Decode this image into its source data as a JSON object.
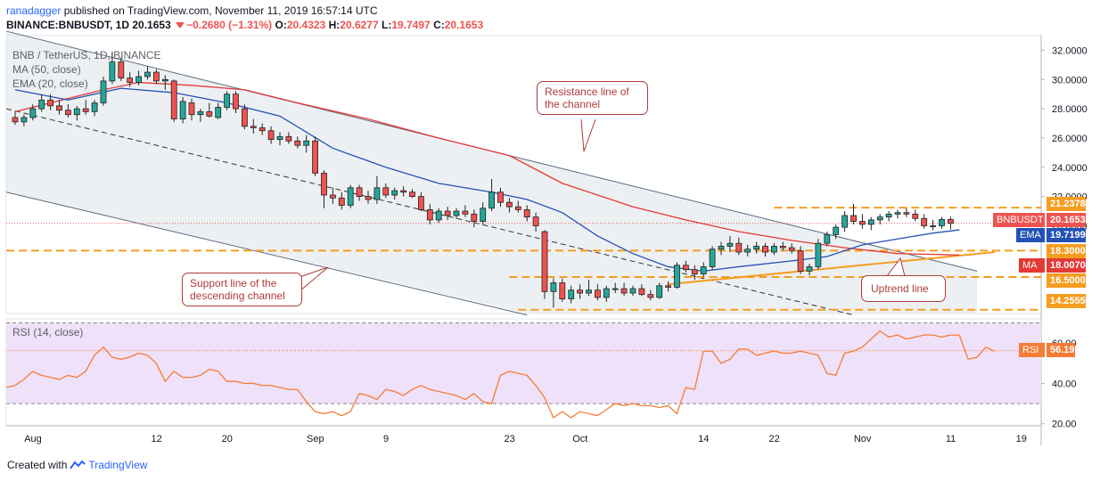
{
  "header": {
    "author": "ranadagger",
    "published": "published on TradingView.com, November 11, 2019 16:57:14 UTC",
    "symbol": "BINANCE:BNBUSDT, 1D",
    "last": "20.1653",
    "change": "−0.2680 (−1.31%)",
    "o_label": "O:",
    "o": "20.4323",
    "h_label": "H:",
    "h": "20.6277",
    "l_label": "L:",
    "l": "19.7497",
    "c_label": "C:",
    "c": "20.1653"
  },
  "legend": {
    "title": "BNB / TetherUS, 1D, BINANCE",
    "ma": "MA (50, close)",
    "ema": "EMA (20, close)",
    "rsi": "RSI (14, close)"
  },
  "annotations": {
    "resistance": "Resistance line of the channel",
    "support": "Support line of the descending channel",
    "uptrend": "Uptrend line"
  },
  "price_tags": {
    "symbol_label": "BNBUSDT",
    "symbol_value": "20.1653",
    "ema_label": "EMA",
    "ema_value": "19.7199",
    "ma_label": "MA",
    "ma_value": "18.0070",
    "rsi_label": "RSI",
    "rsi_value": "56.19",
    "levels": [
      "21.2378",
      "18.3000",
      "16.5000",
      "14.2555"
    ]
  },
  "footer": {
    "created_with": "Created with",
    "brand": "TradingView"
  },
  "colors": {
    "up": "#26a69a",
    "down": "#ef5350",
    "ma": "#e53935",
    "ema": "#2451b7",
    "rsi": "#f57c37",
    "level": "#f59d20",
    "channel": "#5a6a7a",
    "rsi_band": "#efe1f9"
  },
  "chart_data": [
    {
      "type": "candlestick",
      "title": "BNB / TetherUS, 1D, BINANCE",
      "x_tick_labels": [
        "Aug",
        "12",
        "20",
        "Sep",
        "9",
        "23",
        "Oct",
        "14",
        "22",
        "Nov",
        "11",
        "19"
      ],
      "y_tick_labels": [
        "32.0000",
        "30.0000",
        "28.0000",
        "26.0000",
        "24.0000",
        "22.0000",
        "20.0000"
      ],
      "ylim": [
        14.0,
        33.0
      ],
      "levels": [
        21.2378,
        18.3,
        16.5,
        14.2555
      ],
      "candles": [
        {
          "o": 27.4,
          "h": 27.8,
          "l": 26.9,
          "c": 27.1
        },
        {
          "o": 27.1,
          "h": 27.6,
          "l": 26.8,
          "c": 27.4
        },
        {
          "o": 27.4,
          "h": 28.3,
          "l": 27.2,
          "c": 28.0
        },
        {
          "o": 28.0,
          "h": 29.0,
          "l": 27.8,
          "c": 28.6
        },
        {
          "o": 28.6,
          "h": 29.0,
          "l": 27.9,
          "c": 28.2
        },
        {
          "o": 28.2,
          "h": 28.6,
          "l": 27.6,
          "c": 27.9
        },
        {
          "o": 27.9,
          "h": 28.3,
          "l": 27.4,
          "c": 27.6
        },
        {
          "o": 27.6,
          "h": 28.2,
          "l": 27.2,
          "c": 28.0
        },
        {
          "o": 28.0,
          "h": 28.6,
          "l": 27.6,
          "c": 27.8
        },
        {
          "o": 27.8,
          "h": 28.6,
          "l": 27.5,
          "c": 28.4
        },
        {
          "o": 28.4,
          "h": 30.2,
          "l": 28.2,
          "c": 29.9
        },
        {
          "o": 29.9,
          "h": 31.9,
          "l": 29.7,
          "c": 31.2
        },
        {
          "o": 31.2,
          "h": 31.5,
          "l": 29.9,
          "c": 30.1
        },
        {
          "o": 30.1,
          "h": 30.5,
          "l": 29.5,
          "c": 29.8
        },
        {
          "o": 29.8,
          "h": 30.6,
          "l": 29.6,
          "c": 30.2
        },
        {
          "o": 30.2,
          "h": 30.9,
          "l": 30.0,
          "c": 30.5
        },
        {
          "o": 30.5,
          "h": 30.7,
          "l": 29.7,
          "c": 29.9
        },
        {
          "o": 29.9,
          "h": 30.3,
          "l": 29.3,
          "c": 30.0
        },
        {
          "o": 29.9,
          "h": 30.0,
          "l": 27.1,
          "c": 27.3
        },
        {
          "o": 27.3,
          "h": 28.8,
          "l": 27.0,
          "c": 28.5
        },
        {
          "o": 28.4,
          "h": 28.7,
          "l": 27.2,
          "c": 27.6
        },
        {
          "o": 27.6,
          "h": 28.0,
          "l": 27.1,
          "c": 27.8
        },
        {
          "o": 27.8,
          "h": 28.4,
          "l": 27.4,
          "c": 27.5
        },
        {
          "o": 27.4,
          "h": 28.4,
          "l": 27.3,
          "c": 28.1
        },
        {
          "o": 28.1,
          "h": 29.2,
          "l": 27.9,
          "c": 29.0
        },
        {
          "o": 29.0,
          "h": 29.2,
          "l": 27.7,
          "c": 28.0
        },
        {
          "o": 28.0,
          "h": 28.3,
          "l": 26.6,
          "c": 26.8
        },
        {
          "o": 26.8,
          "h": 27.3,
          "l": 26.3,
          "c": 26.7
        },
        {
          "o": 26.7,
          "h": 27.0,
          "l": 26.2,
          "c": 26.5
        },
        {
          "o": 26.5,
          "h": 26.8,
          "l": 25.6,
          "c": 25.9
        },
        {
          "o": 25.9,
          "h": 26.4,
          "l": 25.5,
          "c": 26.1
        },
        {
          "o": 26.1,
          "h": 26.4,
          "l": 25.6,
          "c": 25.8
        },
        {
          "o": 25.8,
          "h": 26.1,
          "l": 25.3,
          "c": 25.5
        },
        {
          "o": 25.5,
          "h": 26.2,
          "l": 25.0,
          "c": 25.8
        },
        {
          "o": 25.8,
          "h": 26.1,
          "l": 23.4,
          "c": 23.6
        },
        {
          "o": 23.6,
          "h": 23.8,
          "l": 21.2,
          "c": 22.1
        },
        {
          "o": 22.1,
          "h": 22.6,
          "l": 21.5,
          "c": 21.9
        },
        {
          "o": 21.9,
          "h": 22.3,
          "l": 21.1,
          "c": 21.4
        },
        {
          "o": 21.4,
          "h": 22.8,
          "l": 21.2,
          "c": 22.6
        },
        {
          "o": 22.6,
          "h": 22.8,
          "l": 21.7,
          "c": 22.0
        },
        {
          "o": 22.0,
          "h": 22.4,
          "l": 21.5,
          "c": 21.8
        },
        {
          "o": 21.8,
          "h": 23.4,
          "l": 21.5,
          "c": 22.6
        },
        {
          "o": 22.6,
          "h": 22.9,
          "l": 21.9,
          "c": 22.1
        },
        {
          "o": 22.1,
          "h": 22.6,
          "l": 21.8,
          "c": 22.4
        },
        {
          "o": 22.4,
          "h": 22.7,
          "l": 22.0,
          "c": 22.3
        },
        {
          "o": 22.3,
          "h": 22.5,
          "l": 21.9,
          "c": 22.0
        },
        {
          "o": 22.0,
          "h": 22.3,
          "l": 21.0,
          "c": 21.1
        },
        {
          "o": 21.1,
          "h": 21.5,
          "l": 20.1,
          "c": 20.4
        },
        {
          "o": 20.4,
          "h": 21.2,
          "l": 20.2,
          "c": 21.0
        },
        {
          "o": 21.0,
          "h": 21.3,
          "l": 20.4,
          "c": 20.7
        },
        {
          "o": 20.7,
          "h": 21.2,
          "l": 20.5,
          "c": 21.0
        },
        {
          "o": 21.0,
          "h": 21.4,
          "l": 20.6,
          "c": 20.8
        },
        {
          "o": 20.8,
          "h": 21.1,
          "l": 19.9,
          "c": 20.3
        },
        {
          "o": 20.3,
          "h": 21.6,
          "l": 20.1,
          "c": 21.2
        },
        {
          "o": 21.2,
          "h": 23.2,
          "l": 21.0,
          "c": 22.3
        },
        {
          "o": 22.3,
          "h": 22.6,
          "l": 21.3,
          "c": 21.6
        },
        {
          "o": 21.6,
          "h": 21.9,
          "l": 20.9,
          "c": 21.3
        },
        {
          "o": 21.3,
          "h": 21.7,
          "l": 20.9,
          "c": 21.1
        },
        {
          "o": 21.1,
          "h": 21.4,
          "l": 20.3,
          "c": 20.6
        },
        {
          "o": 20.6,
          "h": 20.9,
          "l": 19.6,
          "c": 20.0
        },
        {
          "o": 19.6,
          "h": 19.7,
          "l": 15.0,
          "c": 15.5
        },
        {
          "o": 15.5,
          "h": 16.4,
          "l": 14.4,
          "c": 16.1
        },
        {
          "o": 16.1,
          "h": 16.4,
          "l": 14.8,
          "c": 15.0
        },
        {
          "o": 15.0,
          "h": 15.9,
          "l": 14.7,
          "c": 15.6
        },
        {
          "o": 15.6,
          "h": 16.0,
          "l": 15.0,
          "c": 15.4
        },
        {
          "o": 15.4,
          "h": 16.3,
          "l": 15.2,
          "c": 15.6
        },
        {
          "o": 15.6,
          "h": 16.0,
          "l": 14.9,
          "c": 15.1
        },
        {
          "o": 15.1,
          "h": 15.9,
          "l": 14.8,
          "c": 15.7
        },
        {
          "o": 15.7,
          "h": 16.1,
          "l": 15.4,
          "c": 15.7
        },
        {
          "o": 15.7,
          "h": 16.1,
          "l": 15.2,
          "c": 15.4
        },
        {
          "o": 15.4,
          "h": 15.9,
          "l": 15.2,
          "c": 15.7
        },
        {
          "o": 15.7,
          "h": 16.0,
          "l": 15.2,
          "c": 15.3
        },
        {
          "o": 15.3,
          "h": 15.6,
          "l": 14.9,
          "c": 15.1
        },
        {
          "o": 15.1,
          "h": 16.1,
          "l": 15.0,
          "c": 15.9
        },
        {
          "o": 15.9,
          "h": 16.2,
          "l": 15.5,
          "c": 15.8
        },
        {
          "o": 15.8,
          "h": 17.5,
          "l": 15.7,
          "c": 17.3
        },
        {
          "o": 17.3,
          "h": 17.6,
          "l": 16.8,
          "c": 17.0
        },
        {
          "o": 17.0,
          "h": 17.3,
          "l": 16.3,
          "c": 16.7
        },
        {
          "o": 16.7,
          "h": 17.5,
          "l": 16.5,
          "c": 17.2
        },
        {
          "o": 17.2,
          "h": 18.6,
          "l": 17.0,
          "c": 18.4
        },
        {
          "o": 18.4,
          "h": 18.9,
          "l": 18.0,
          "c": 18.6
        },
        {
          "o": 18.6,
          "h": 19.3,
          "l": 18.2,
          "c": 18.8
        },
        {
          "o": 18.8,
          "h": 19.2,
          "l": 18.0,
          "c": 18.2
        },
        {
          "o": 18.2,
          "h": 18.7,
          "l": 17.9,
          "c": 18.4
        },
        {
          "o": 18.4,
          "h": 18.9,
          "l": 18.1,
          "c": 18.6
        },
        {
          "o": 18.6,
          "h": 18.8,
          "l": 17.9,
          "c": 18.2
        },
        {
          "o": 18.2,
          "h": 18.8,
          "l": 18.0,
          "c": 18.6
        },
        {
          "o": 18.6,
          "h": 18.9,
          "l": 18.3,
          "c": 18.5
        },
        {
          "o": 18.5,
          "h": 18.8,
          "l": 18.1,
          "c": 18.3
        },
        {
          "o": 18.3,
          "h": 18.6,
          "l": 16.7,
          "c": 16.9
        },
        {
          "o": 16.9,
          "h": 17.4,
          "l": 16.6,
          "c": 17.2
        },
        {
          "o": 17.2,
          "h": 19.1,
          "l": 17.0,
          "c": 18.8
        },
        {
          "o": 18.8,
          "h": 19.6,
          "l": 18.6,
          "c": 19.4
        },
        {
          "o": 19.4,
          "h": 20.1,
          "l": 19.1,
          "c": 19.9
        },
        {
          "o": 19.9,
          "h": 21.0,
          "l": 19.6,
          "c": 20.7
        },
        {
          "o": 20.7,
          "h": 21.5,
          "l": 20.1,
          "c": 20.3
        },
        {
          "o": 20.3,
          "h": 20.8,
          "l": 19.8,
          "c": 20.1
        },
        {
          "o": 20.1,
          "h": 20.6,
          "l": 19.7,
          "c": 20.4
        },
        {
          "o": 20.4,
          "h": 20.8,
          "l": 20.1,
          "c": 20.6
        },
        {
          "o": 20.6,
          "h": 21.0,
          "l": 20.3,
          "c": 20.8
        },
        {
          "o": 20.8,
          "h": 21.1,
          "l": 20.5,
          "c": 20.9
        },
        {
          "o": 20.9,
          "h": 21.2,
          "l": 20.6,
          "c": 20.8
        },
        {
          "o": 20.8,
          "h": 21.1,
          "l": 20.3,
          "c": 20.5
        },
        {
          "o": 20.5,
          "h": 20.8,
          "l": 19.8,
          "c": 20.0
        },
        {
          "o": 20.0,
          "h": 20.4,
          "l": 19.7,
          "c": 20.0
        },
        {
          "o": 20.0,
          "h": 20.6,
          "l": 19.8,
          "c": 20.43
        },
        {
          "o": 20.4323,
          "h": 20.6277,
          "l": 19.7497,
          "c": 20.1653
        }
      ],
      "ma50": {
        "name": "MA (50, close)",
        "values": [
          {
            "i": 0,
            "v": 27.8
          },
          {
            "i": 10,
            "v": 29.3
          },
          {
            "i": 14,
            "v": 29.8
          },
          {
            "i": 20,
            "v": 29.6
          },
          {
            "i": 26,
            "v": 29.3
          },
          {
            "i": 32,
            "v": 28.4
          },
          {
            "i": 40,
            "v": 27.3
          },
          {
            "i": 48,
            "v": 26.0
          },
          {
            "i": 56,
            "v": 24.8
          },
          {
            "i": 62,
            "v": 22.9
          },
          {
            "i": 70,
            "v": 21.3
          },
          {
            "i": 76,
            "v": 20.4
          },
          {
            "i": 82,
            "v": 19.6
          },
          {
            "i": 88,
            "v": 19.0
          },
          {
            "i": 94,
            "v": 18.5
          },
          {
            "i": 100,
            "v": 18.1
          },
          {
            "i": 107,
            "v": 18.0
          }
        ]
      },
      "ema20": {
        "name": "EMA (20, close)",
        "values": [
          {
            "i": 0,
            "v": 29.3
          },
          {
            "i": 6,
            "v": 28.6
          },
          {
            "i": 12,
            "v": 29.4
          },
          {
            "i": 18,
            "v": 29.1
          },
          {
            "i": 24,
            "v": 28.4
          },
          {
            "i": 30,
            "v": 27.5
          },
          {
            "i": 36,
            "v": 25.3
          },
          {
            "i": 42,
            "v": 24.0
          },
          {
            "i": 48,
            "v": 22.9
          },
          {
            "i": 54,
            "v": 22.3
          },
          {
            "i": 58,
            "v": 21.8
          },
          {
            "i": 62,
            "v": 20.9
          },
          {
            "i": 66,
            "v": 19.3
          },
          {
            "i": 70,
            "v": 18.1
          },
          {
            "i": 74,
            "v": 17.2
          },
          {
            "i": 78,
            "v": 16.9
          },
          {
            "i": 82,
            "v": 17.2
          },
          {
            "i": 88,
            "v": 17.6
          },
          {
            "i": 92,
            "v": 17.9
          },
          {
            "i": 96,
            "v": 18.7
          },
          {
            "i": 100,
            "v": 19.1
          },
          {
            "i": 104,
            "v": 19.5
          },
          {
            "i": 107,
            "v": 19.72
          }
        ]
      },
      "resistance_line": {
        "start": {
          "i": -1,
          "v": 33.3
        },
        "end": {
          "i": 109,
          "v": 16.9
        }
      },
      "support_line": {
        "start": {
          "i": -1,
          "v": 22.3
        },
        "end": {
          "i": 58,
          "v": 13.9
        }
      },
      "channel_midline": {
        "start": {
          "i": -1,
          "v": 28.0
        },
        "end": {
          "i": 95,
          "v": 13.9
        }
      },
      "uptrend_line": {
        "start": {
          "i": 74,
          "v": 16.0
        },
        "end": {
          "i": 111,
          "v": 18.2
        }
      }
    },
    {
      "type": "line",
      "title": "RSI (14, close)",
      "y_tick_labels": [
        "60.00",
        "40.00",
        "20.00"
      ],
      "ylim": [
        19,
        72
      ],
      "band": [
        30,
        70
      ],
      "series": [
        {
          "name": "RSI (14, close)",
          "values": [
            38,
            39,
            42,
            46,
            44,
            43,
            42,
            44,
            43,
            46,
            54,
            58,
            53,
            52,
            53,
            55,
            54,
            50,
            41,
            46,
            43,
            43,
            44,
            47,
            46,
            41,
            41,
            40,
            40,
            39,
            39,
            38,
            37,
            37,
            31,
            26,
            25,
            26,
            24,
            26,
            35,
            34,
            32,
            37,
            36,
            34,
            37,
            39,
            37,
            36,
            35,
            34,
            32,
            35,
            31,
            30,
            44,
            46,
            45,
            44,
            39,
            33,
            23,
            26,
            23,
            26,
            25,
            24,
            27,
            30,
            29,
            30,
            29,
            29,
            28,
            29,
            25,
            38,
            37,
            56,
            56,
            50,
            52,
            57,
            57,
            54,
            55,
            56,
            55,
            55,
            56,
            55,
            54,
            45,
            44,
            55,
            56,
            58,
            62,
            66,
            63,
            64,
            62,
            63,
            64,
            64,
            63,
            64,
            64,
            52,
            53,
            58,
            56
          ]
        }
      ]
    }
  ]
}
